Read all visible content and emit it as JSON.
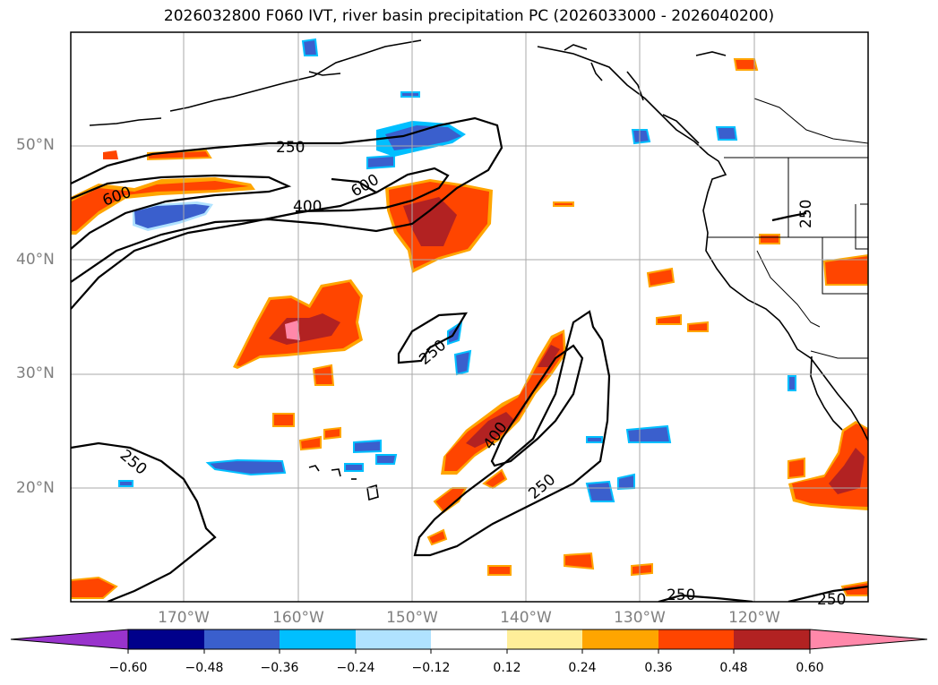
{
  "title": "2026032800 F060 IVT, river basin precipitation PC (2026033000 - 2026040200)",
  "lat_labels": [
    "50°N",
    "40°N",
    "30°N",
    "20°N"
  ],
  "lon_labels": [
    "170°W",
    "160°W",
    "150°W",
    "140°W",
    "130°W",
    "120°W"
  ],
  "contour_labels": [
    "250",
    "600",
    "400",
    "600",
    "250",
    "400",
    "250",
    "250",
    "250",
    "250",
    "250"
  ],
  "colorbar": {
    "ticks": [
      "−0.60",
      "−0.48",
      "−0.36",
      "−0.24",
      "−0.12",
      "0.12",
      "0.24",
      "0.36",
      "0.48",
      "0.60"
    ],
    "colors": [
      "#9933cc",
      "#00008b",
      "#3a5fcd",
      "#00bfff",
      "#b0e2ff",
      "#ffffff",
      "#ffee99",
      "#ffa500",
      "#ff4500",
      "#b22222",
      "#ff88aa",
      "#ff88aa"
    ]
  },
  "colors": {
    "pos_low": "#ffee99",
    "pos_mid": "#ffa500",
    "pos_high": "#ff4500",
    "pos_vhigh": "#b22222",
    "pos_max": "#ff88aa",
    "neg_light": "#b0e2ff",
    "neg_mid": "#00bfff",
    "neg_strong": "#3a5fcd",
    "neg_max": "#00008b"
  }
}
